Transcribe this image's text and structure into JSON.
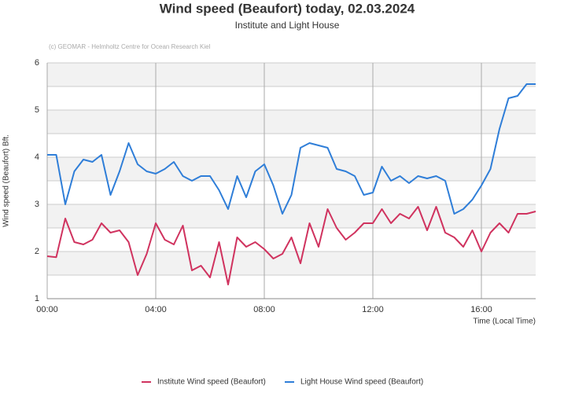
{
  "chart_data": {
    "type": "line",
    "title": "Wind speed (Beaufort) today, 02.03.2024",
    "subtitle": "Institute and Light House",
    "credit": "(c) GEOMAR - Helmholtz Centre for Ocean Research Kiel",
    "x_label": "Time (Local Time)",
    "y_label": "Wind speed (Beaufort)  Bft.",
    "x": [
      0,
      20,
      40,
      60,
      80,
      100,
      120,
      140,
      160,
      180,
      200,
      220,
      240,
      260,
      280,
      300,
      320,
      340,
      360,
      380,
      400,
      420,
      440,
      460,
      480,
      500,
      520,
      540,
      560,
      580,
      600,
      620,
      640,
      660,
      680,
      700,
      720,
      740,
      760,
      780,
      800,
      820,
      840,
      860,
      880,
      900,
      920,
      940,
      960,
      980,
      1000,
      1020,
      1040,
      1060,
      1080
    ],
    "xlim": [
      0,
      1080
    ],
    "xticks": [
      {
        "value": 0,
        "label": "00:00"
      },
      {
        "value": 240,
        "label": "04:00"
      },
      {
        "value": 480,
        "label": "08:00"
      },
      {
        "value": 720,
        "label": "12:00"
      },
      {
        "value": 960,
        "label": "16:00"
      }
    ],
    "ylim": [
      1,
      6
    ],
    "yticks": [
      1,
      2,
      3,
      4,
      5,
      6
    ],
    "grid": true,
    "legend": "bottom",
    "series": [
      {
        "name": "Institute Wind speed (Beaufort)",
        "color": "#d0335f",
        "values": [
          1.9,
          1.88,
          2.7,
          2.2,
          2.15,
          2.25,
          2.6,
          2.4,
          2.45,
          2.2,
          1.5,
          1.95,
          2.6,
          2.25,
          2.15,
          2.55,
          1.6,
          1.7,
          1.45,
          2.2,
          1.3,
          2.3,
          2.1,
          2.2,
          2.05,
          1.85,
          1.95,
          2.3,
          1.75,
          2.6,
          2.1,
          2.9,
          2.5,
          2.25,
          2.4,
          2.6,
          2.6,
          2.9,
          2.6,
          2.8,
          2.7,
          2.95,
          2.45,
          2.95,
          2.4,
          2.3,
          2.1,
          2.45,
          2.0,
          2.4,
          2.6,
          2.4,
          2.8,
          2.8,
          2.85
        ]
      },
      {
        "name": "Light House Wind speed (Beaufort)",
        "color": "#2f7ed8",
        "values": [
          4.05,
          4.05,
          3.0,
          3.7,
          3.95,
          3.9,
          4.05,
          3.2,
          3.7,
          4.3,
          3.85,
          3.7,
          3.65,
          3.75,
          3.9,
          3.6,
          3.5,
          3.6,
          3.6,
          3.3,
          2.9,
          3.6,
          3.15,
          3.7,
          3.85,
          3.4,
          2.8,
          3.2,
          4.2,
          4.3,
          4.25,
          4.2,
          3.75,
          3.7,
          3.6,
          3.2,
          3.25,
          3.8,
          3.5,
          3.6,
          3.45,
          3.6,
          3.55,
          3.6,
          3.5,
          2.8,
          2.9,
          3.1,
          3.4,
          3.75,
          4.6,
          5.25,
          5.3,
          5.55,
          5.55
        ]
      }
    ]
  }
}
